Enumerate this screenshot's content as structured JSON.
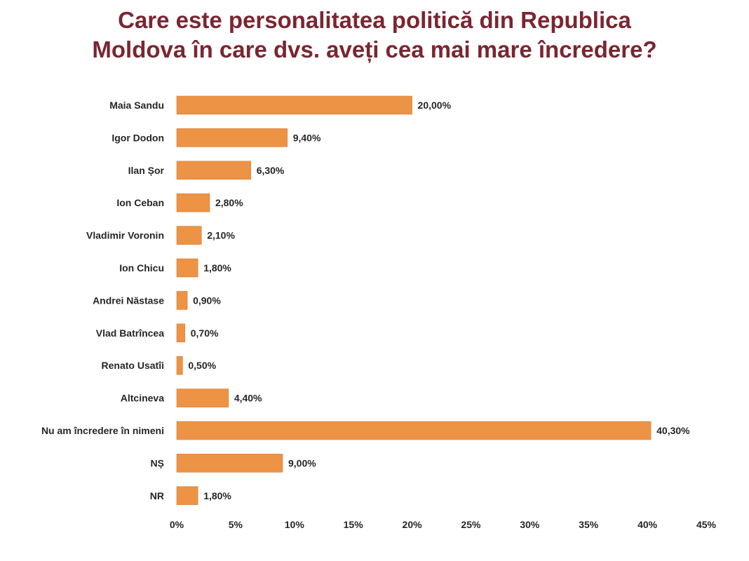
{
  "chart_data": {
    "type": "bar",
    "orientation": "horizontal",
    "title_lines": [
      "Care este personalitatea politică din Republica",
      "Moldova în care dvs. aveți cea mai mare încredere?"
    ],
    "categories": [
      "Maia Sandu",
      "Igor Dodon",
      "Ilan Șor",
      "Ion Ceban",
      "Vladimir Voronin",
      "Ion Chicu",
      "Andrei Năstase",
      "Vlad Batrîncea",
      "Renato Usatîi",
      "Altcineva",
      "Nu am încredere în nimeni",
      "NȘ",
      "NR"
    ],
    "values": [
      20.0,
      9.4,
      6.3,
      2.8,
      2.1,
      1.8,
      0.9,
      0.7,
      0.5,
      4.4,
      40.3,
      9.0,
      1.8
    ],
    "value_labels": [
      "20,00%",
      "9,40%",
      "6,30%",
      "2,80%",
      "2,10%",
      "1,80%",
      "0,90%",
      "0,70%",
      "0,50%",
      "4,40%",
      "40,30%",
      "9,00%",
      "1,80%"
    ],
    "xlim": [
      0,
      45
    ],
    "xticks": [
      0,
      5,
      10,
      15,
      20,
      25,
      30,
      35,
      40,
      45
    ],
    "xtick_labels": [
      "0%",
      "5%",
      "10%",
      "15%",
      "20%",
      "25%",
      "30%",
      "35%",
      "40%",
      "45%"
    ],
    "grid": false,
    "legend": "none",
    "colors": {
      "bar": "#ec9345",
      "bar_edge": "#d9813a",
      "title": "#7a2631",
      "text": "#262626"
    }
  }
}
